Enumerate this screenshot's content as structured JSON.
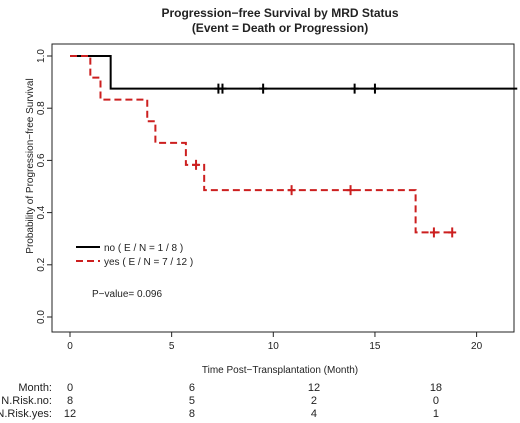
{
  "chart_data": {
    "type": "line",
    "title": "Progression−free Survival by MRD Status",
    "subtitle": "(Event = Death or Progression)",
    "xlabel": "Time Post−Transplantation (Month)",
    "ylabel": "Probability of Progression−free Survival",
    "xlim": [
      0,
      22
    ],
    "ylim": [
      0,
      1
    ],
    "x_ticks": [
      "0",
      "5",
      "10",
      "15",
      "20"
    ],
    "y_ticks": [
      "0.0",
      "0.2",
      "0.4",
      "0.6",
      "0.8",
      "1.0"
    ],
    "grid": false,
    "legend_position": "bottom-left",
    "series": [
      {
        "name": "no",
        "legend_label": "no  ( E / N = 1 / 8 )",
        "color": "#000000",
        "line_style": "solid",
        "steps": [
          [
            0,
            1.0
          ],
          [
            2.0,
            0.875
          ],
          [
            22,
            0.875
          ]
        ],
        "censored": [
          [
            7.3,
            0.875
          ],
          [
            7.5,
            0.875
          ],
          [
            9.5,
            0.875
          ],
          [
            14.0,
            0.875
          ],
          [
            15.0,
            0.875
          ]
        ]
      },
      {
        "name": "yes",
        "legend_label": "yes  ( E / N = 7 / 12 )",
        "color": "#cc1f1f",
        "line_style": "dashed",
        "steps": [
          [
            0,
            1.0
          ],
          [
            1.0,
            0.917
          ],
          [
            1.5,
            0.833
          ],
          [
            3.8,
            0.75
          ],
          [
            4.2,
            0.667
          ],
          [
            5.7,
            0.583
          ],
          [
            6.6,
            0.486
          ],
          [
            17.0,
            0.324
          ],
          [
            18.8,
            0.324
          ]
        ],
        "censored": [
          [
            6.2,
            0.583
          ],
          [
            10.9,
            0.486
          ],
          [
            13.8,
            0.486
          ],
          [
            17.9,
            0.324
          ],
          [
            18.8,
            0.324
          ]
        ]
      }
    ],
    "annotation": "P−value= 0.096",
    "risk_table": {
      "rows": [
        {
          "label": "Month:",
          "values": [
            "0",
            "6",
            "12",
            "18"
          ]
        },
        {
          "label": "N.Risk.no:",
          "values": [
            "8",
            "5",
            "2",
            "0"
          ]
        },
        {
          "label": "N.Risk.yes:",
          "values": [
            "12",
            "8",
            "4",
            "1"
          ]
        }
      ],
      "times": [
        0,
        6,
        12,
        18
      ]
    }
  }
}
